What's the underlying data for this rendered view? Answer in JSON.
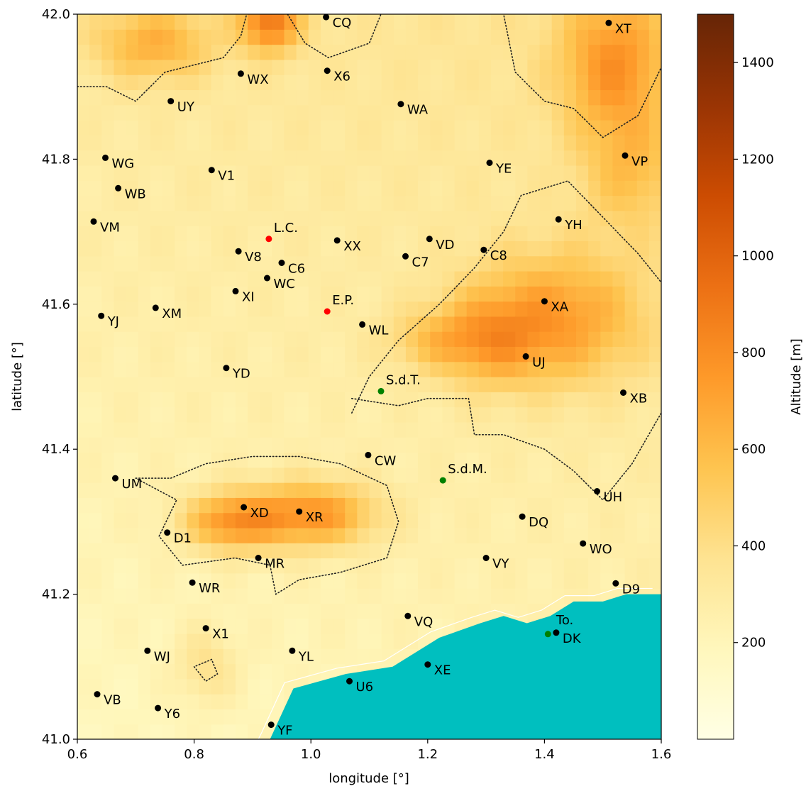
{
  "chart_data": {
    "type": "heatmap",
    "title": "",
    "xlabel": "longitude [°]",
    "ylabel": "latitude [°]",
    "xlim": [
      0.6,
      1.6
    ],
    "ylim": [
      41.0,
      42.0
    ],
    "xticks": [
      "0.6",
      "0.8",
      "1.0",
      "1.2",
      "1.4",
      "1.6"
    ],
    "yticks": [
      "41.0",
      "41.2",
      "41.4",
      "41.6",
      "41.8",
      "42.0"
    ],
    "grid": false,
    "colorbar": {
      "label": "Altitude [m]",
      "range": [
        0,
        1500
      ],
      "ticks": [
        "200",
        "400",
        "600",
        "800",
        "1000",
        "1200",
        "1400"
      ],
      "colormap": [
        "#ffffe5",
        "#fff7bc",
        "#fee391",
        "#fec44f",
        "#fe9929",
        "#ec7014",
        "#cc4c02",
        "#993404",
        "#662506"
      ]
    },
    "sea_color": "#00bfbf",
    "contour_style": "dotted",
    "sea_boundary": [
      [
        0.93,
        41.0
      ],
      [
        0.97,
        41.07
      ],
      [
        1.06,
        41.09
      ],
      [
        1.14,
        41.1
      ],
      [
        1.22,
        41.14
      ],
      [
        1.29,
        41.16
      ],
      [
        1.33,
        41.17
      ],
      [
        1.37,
        41.16
      ],
      [
        1.41,
        41.17
      ],
      [
        1.45,
        41.19
      ],
      [
        1.5,
        41.19
      ],
      [
        1.54,
        41.2
      ],
      [
        1.6,
        41.2
      ]
    ],
    "points": [
      {
        "label": "CQ",
        "lon": 1.026,
        "lat": 41.996,
        "color": "black"
      },
      {
        "label": "XT",
        "lon": 1.51,
        "lat": 41.988,
        "color": "black"
      },
      {
        "label": "WX",
        "lon": 0.88,
        "lat": 41.918,
        "color": "black"
      },
      {
        "label": "X6",
        "lon": 1.028,
        "lat": 41.922,
        "color": "black"
      },
      {
        "label": "UY",
        "lon": 0.76,
        "lat": 41.88,
        "color": "black"
      },
      {
        "label": "WA",
        "lon": 1.154,
        "lat": 41.876,
        "color": "black"
      },
      {
        "label": "WG",
        "lon": 0.648,
        "lat": 41.802,
        "color": "black"
      },
      {
        "label": "VP",
        "lon": 1.538,
        "lat": 41.805,
        "color": "black"
      },
      {
        "label": "YE",
        "lon": 1.306,
        "lat": 41.795,
        "color": "black"
      },
      {
        "label": "V1",
        "lon": 0.83,
        "lat": 41.785,
        "color": "black"
      },
      {
        "label": "WB",
        "lon": 0.67,
        "lat": 41.76,
        "color": "black"
      },
      {
        "label": "VM",
        "lon": 0.628,
        "lat": 41.714,
        "color": "black"
      },
      {
        "label": "YH",
        "lon": 1.424,
        "lat": 41.717,
        "color": "black"
      },
      {
        "label": "L.C.",
        "lon": 0.928,
        "lat": 41.69,
        "color": "red"
      },
      {
        "label": "XX",
        "lon": 1.045,
        "lat": 41.688,
        "color": "black"
      },
      {
        "label": "VD",
        "lon": 1.203,
        "lat": 41.69,
        "color": "black"
      },
      {
        "label": "C8",
        "lon": 1.296,
        "lat": 41.675,
        "color": "black"
      },
      {
        "label": "V8",
        "lon": 0.876,
        "lat": 41.673,
        "color": "black"
      },
      {
        "label": "C7",
        "lon": 1.162,
        "lat": 41.666,
        "color": "black"
      },
      {
        "label": "C6",
        "lon": 0.95,
        "lat": 41.657,
        "color": "black"
      },
      {
        "label": "WC",
        "lon": 0.925,
        "lat": 41.636,
        "color": "black"
      },
      {
        "label": "XI",
        "lon": 0.871,
        "lat": 41.618,
        "color": "black"
      },
      {
        "label": "XA",
        "lon": 1.4,
        "lat": 41.604,
        "color": "black"
      },
      {
        "label": "XM",
        "lon": 0.734,
        "lat": 41.595,
        "color": "black"
      },
      {
        "label": "E.P.",
        "lon": 1.028,
        "lat": 41.59,
        "color": "red"
      },
      {
        "label": "YJ",
        "lon": 0.641,
        "lat": 41.584,
        "color": "black"
      },
      {
        "label": "WL",
        "lon": 1.088,
        "lat": 41.572,
        "color": "black"
      },
      {
        "label": "UJ",
        "lon": 1.368,
        "lat": 41.528,
        "color": "black"
      },
      {
        "label": "YD",
        "lon": 0.855,
        "lat": 41.512,
        "color": "black"
      },
      {
        "label": "S.d.T.",
        "lon": 1.12,
        "lat": 41.48,
        "color": "green"
      },
      {
        "label": "XB",
        "lon": 1.535,
        "lat": 41.478,
        "color": "black"
      },
      {
        "label": "CW",
        "lon": 1.098,
        "lat": 41.392,
        "color": "black"
      },
      {
        "label": "UM",
        "lon": 0.665,
        "lat": 41.36,
        "color": "black"
      },
      {
        "label": "S.d.M.",
        "lon": 1.226,
        "lat": 41.357,
        "color": "green"
      },
      {
        "label": "UH",
        "lon": 1.49,
        "lat": 41.342,
        "color": "black"
      },
      {
        "label": "XD",
        "lon": 0.885,
        "lat": 41.32,
        "color": "black"
      },
      {
        "label": "XR",
        "lon": 0.98,
        "lat": 41.314,
        "color": "black"
      },
      {
        "label": "DQ",
        "lon": 1.362,
        "lat": 41.307,
        "color": "black"
      },
      {
        "label": "D1",
        "lon": 0.754,
        "lat": 41.285,
        "color": "black"
      },
      {
        "label": "WO",
        "lon": 1.466,
        "lat": 41.27,
        "color": "black"
      },
      {
        "label": "MR",
        "lon": 0.91,
        "lat": 41.25,
        "color": "black"
      },
      {
        "label": "VY",
        "lon": 1.3,
        "lat": 41.25,
        "color": "black"
      },
      {
        "label": "WR",
        "lon": 0.797,
        "lat": 41.216,
        "color": "black"
      },
      {
        "label": "D9",
        "lon": 1.522,
        "lat": 41.215,
        "color": "black"
      },
      {
        "label": "VQ",
        "lon": 1.166,
        "lat": 41.17,
        "color": "black"
      },
      {
        "label": "X1",
        "lon": 0.82,
        "lat": 41.153,
        "color": "black"
      },
      {
        "label": "To.",
        "lon": 1.42,
        "lat": 41.147,
        "color": "black",
        "label_dx": 0,
        "label_dy": -12
      },
      {
        "label": "DK",
        "lon": 1.42,
        "lat": 41.147,
        "color": "black",
        "hide_marker": true
      },
      {
        "label": "",
        "lon": 1.406,
        "lat": 41.145,
        "color": "green"
      },
      {
        "label": "WJ",
        "lon": 0.72,
        "lat": 41.122,
        "color": "black"
      },
      {
        "label": "YL",
        "lon": 0.968,
        "lat": 41.122,
        "color": "black"
      },
      {
        "label": "XE",
        "lon": 1.2,
        "lat": 41.103,
        "color": "black"
      },
      {
        "label": "U6",
        "lon": 1.066,
        "lat": 41.08,
        "color": "black"
      },
      {
        "label": "VB",
        "lon": 0.634,
        "lat": 41.062,
        "color": "black"
      },
      {
        "label": "Y6",
        "lon": 0.738,
        "lat": 41.043,
        "color": "black"
      },
      {
        "label": "YF",
        "lon": 0.932,
        "lat": 41.02,
        "color": "black"
      }
    ]
  }
}
